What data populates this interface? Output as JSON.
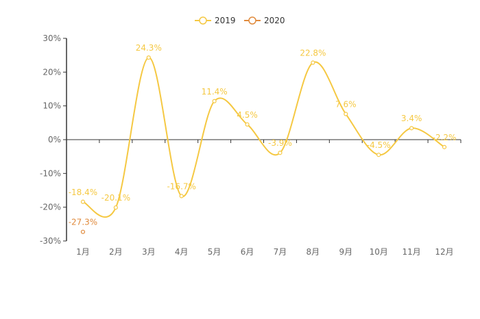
{
  "chart_data": {
    "type": "line",
    "categories": [
      "1月",
      "2月",
      "3月",
      "4月",
      "5月",
      "6月",
      "7月",
      "8月",
      "9月",
      "10月",
      "11月",
      "12月"
    ],
    "series": [
      {
        "name": "2019",
        "color": "#f5c842",
        "smooth": true,
        "values": [
          -18.4,
          -20.1,
          24.3,
          -16.7,
          11.4,
          4.5,
          -3.9,
          22.8,
          7.6,
          -4.5,
          3.4,
          -2.2
        ],
        "labels": [
          "-18.4%",
          "-20.1%",
          "24.3%",
          "-16.7%",
          "11.4%",
          "4.5%",
          "-3.9%",
          "22.8%",
          "7.6%",
          "-4.5%",
          "3.4%",
          "-2.2%"
        ]
      },
      {
        "name": "2020",
        "color": "#e08a3c",
        "smooth": false,
        "values": [
          -27.3,
          null,
          null,
          null,
          null,
          null,
          null,
          null,
          null,
          null,
          null,
          null
        ],
        "labels": [
          "-27.3%",
          null,
          null,
          null,
          null,
          null,
          null,
          null,
          null,
          null,
          null,
          null
        ]
      }
    ],
    "yticks": [
      "30%",
      "20%",
      "10%",
      "0%",
      "-10%",
      "-20%",
      "-30%"
    ],
    "ylim": [
      -30,
      30
    ],
    "legend_position": "top-center",
    "grid": false
  }
}
